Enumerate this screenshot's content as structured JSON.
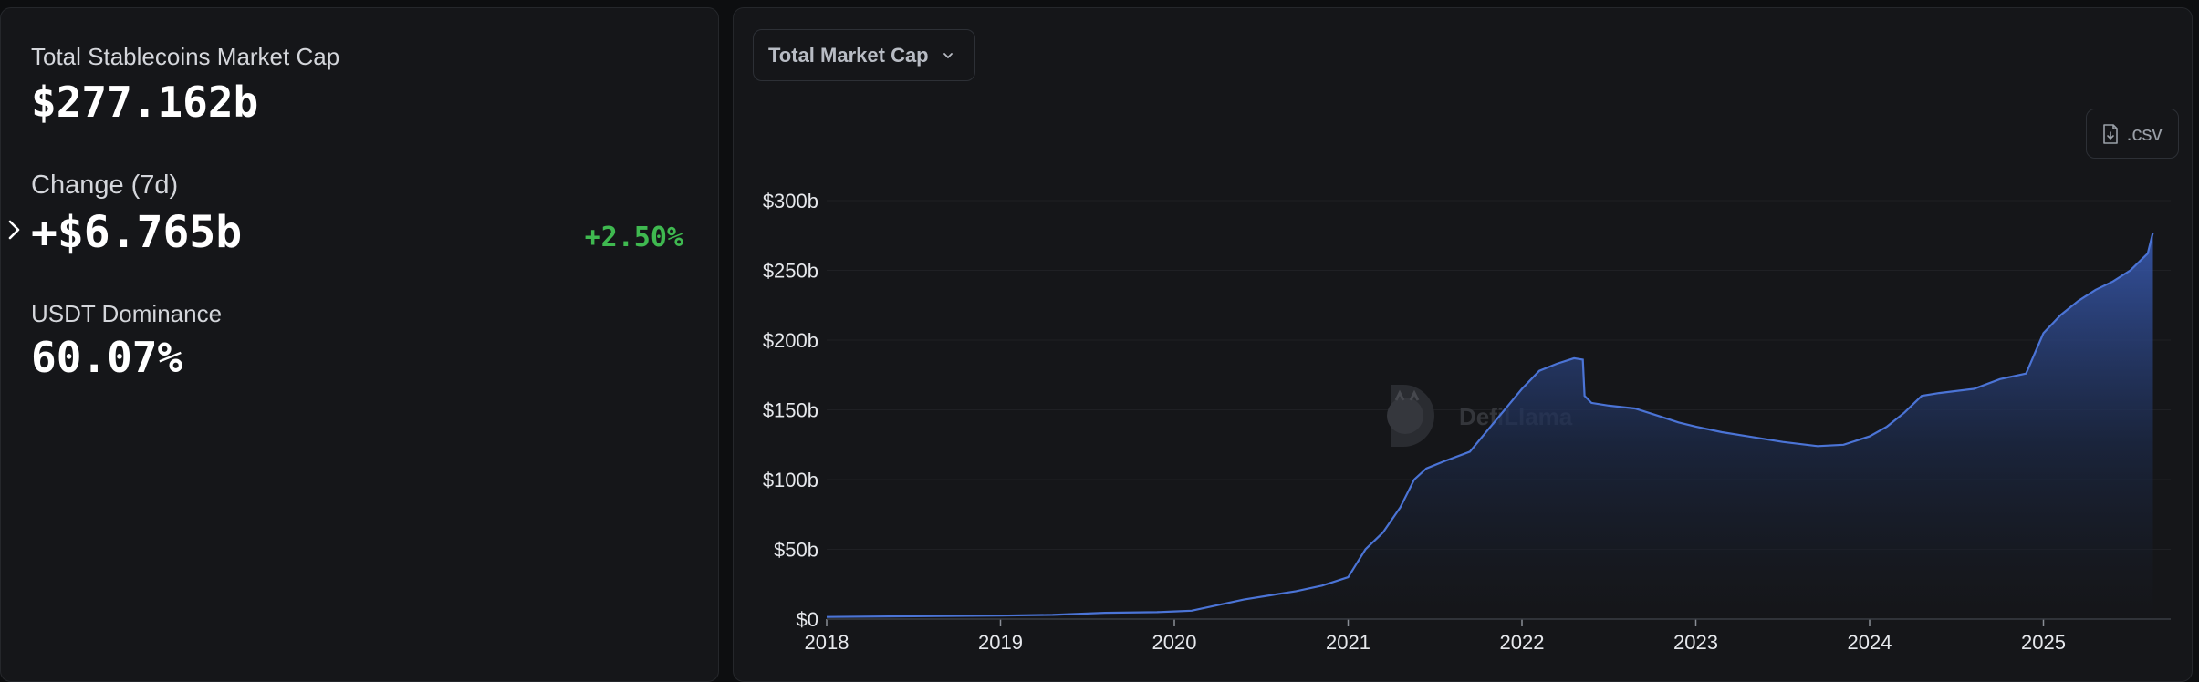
{
  "summary": {
    "market_cap_label": "Total Stablecoins Market Cap",
    "market_cap_value": "$277.162b",
    "change_label": "Change (7d)",
    "change_value": "+$6.765b",
    "change_pct": "+2.50%",
    "dominance_label": "USDT Dominance",
    "dominance_value": "60.07%"
  },
  "controls": {
    "metric_select_value": "Total Market Cap",
    "csv_label": ".csv"
  },
  "watermark": "DefiLlama",
  "colors": {
    "accent": "#4b74d6",
    "positive": "#3fb950",
    "panel": "#151619"
  },
  "chart_data": {
    "type": "area",
    "title": "Total Market Cap",
    "xlabel": "",
    "ylabel": "",
    "x_ticks": [
      "2018",
      "2019",
      "2020",
      "2021",
      "2022",
      "2023",
      "2024",
      "2025"
    ],
    "y_ticks": [
      "$0",
      "$50b",
      "$100b",
      "$150b",
      "$200b",
      "$250b",
      "$300b"
    ],
    "ylim": [
      0,
      300
    ],
    "xlim": [
      2018.0,
      2025.63
    ],
    "grid": true,
    "series": [
      {
        "name": "Total Stablecoins Market Cap ($b)",
        "x": [
          2018.0,
          2018.5,
          2019.0,
          2019.3,
          2019.6,
          2019.9,
          2020.0,
          2020.1,
          2020.25,
          2020.4,
          2020.55,
          2020.7,
          2020.85,
          2021.0,
          2021.05,
          2021.1,
          2021.2,
          2021.3,
          2021.38,
          2021.45,
          2021.55,
          2021.7,
          2021.8,
          2021.9,
          2022.0,
          2022.1,
          2022.2,
          2022.3,
          2022.35,
          2022.36,
          2022.4,
          2022.5,
          2022.65,
          2022.8,
          2022.9,
          2023.0,
          2023.15,
          2023.3,
          2023.5,
          2023.7,
          2023.85,
          2024.0,
          2024.1,
          2024.2,
          2024.3,
          2024.4,
          2024.6,
          2024.75,
          2024.9,
          2025.0,
          2025.1,
          2025.2,
          2025.3,
          2025.4,
          2025.5,
          2025.6,
          2025.63
        ],
        "values": [
          1.5,
          2,
          2.5,
          3,
          4.5,
          5,
          5.5,
          6,
          10,
          14,
          17,
          20,
          24,
          30,
          40,
          50,
          62,
          80,
          100,
          108,
          113,
          120,
          135,
          150,
          165,
          178,
          183,
          187,
          186,
          160,
          155,
          153,
          151,
          145,
          141,
          138,
          134,
          131,
          127,
          124,
          125,
          131,
          138,
          148,
          160,
          162,
          165,
          172,
          176,
          205,
          218,
          228,
          236,
          242,
          250,
          262,
          277
        ]
      }
    ]
  }
}
